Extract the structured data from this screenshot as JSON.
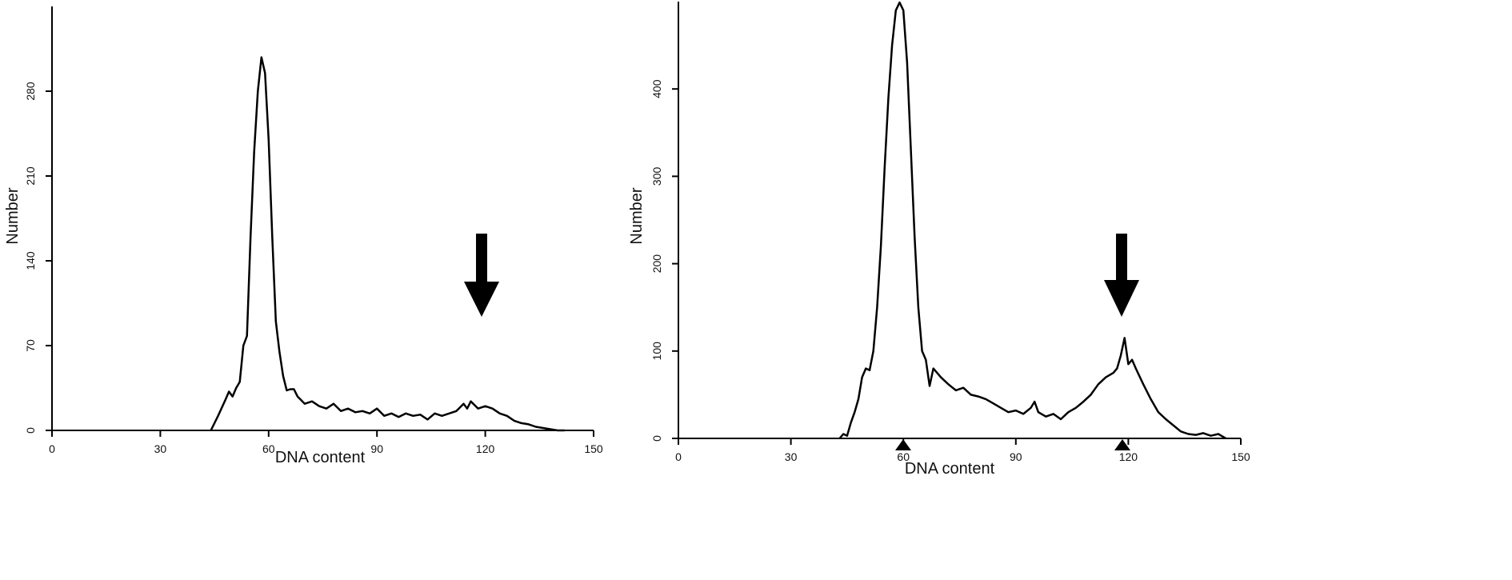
{
  "chart_data": [
    {
      "type": "line",
      "xlabel": "DNA  content",
      "ylabel": "Number",
      "color": "#000000",
      "x": [
        44,
        46,
        48,
        49,
        50,
        51,
        52,
        53,
        54,
        55,
        56,
        57,
        58,
        59,
        60,
        61,
        62,
        63,
        64,
        65,
        66,
        67,
        68,
        69,
        70,
        72,
        74,
        76,
        78,
        80,
        82,
        84,
        86,
        88,
        90,
        92,
        94,
        96,
        98,
        100,
        102,
        104,
        106,
        108,
        110,
        112,
        114,
        115,
        116,
        118,
        120,
        122,
        124,
        126,
        128,
        130,
        132,
        134,
        136,
        138,
        140,
        142
      ],
      "values": [
        0,
        12,
        25,
        32,
        28,
        35,
        40,
        70,
        78,
        160,
        230,
        280,
        308,
        295,
        240,
        160,
        90,
        65,
        45,
        33,
        34,
        34,
        28,
        25,
        22,
        24,
        20,
        18,
        22,
        16,
        18,
        15,
        16,
        14,
        18,
        12,
        14,
        11,
        14,
        12,
        13,
        9,
        14,
        12,
        14,
        16,
        22,
        18,
        24,
        18,
        20,
        18,
        14,
        12,
        8,
        6,
        5,
        3,
        2,
        1,
        0,
        0
      ],
      "xlim": [
        0,
        150
      ],
      "ylim": [
        0,
        350
      ],
      "xticks": [
        0,
        30,
        60,
        90,
        120,
        150
      ],
      "yticks": [
        0,
        70,
        140,
        210,
        280
      ]
    },
    {
      "type": "line",
      "xlabel": "DNA  content",
      "ylabel": "Number",
      "color": "#000000",
      "x": [
        43,
        44,
        45,
        46,
        47,
        48,
        49,
        50,
        51,
        52,
        53,
        54,
        55,
        56,
        57,
        58,
        59,
        60,
        61,
        62,
        63,
        64,
        65,
        66,
        67,
        68,
        69,
        70,
        72,
        74,
        76,
        78,
        80,
        82,
        84,
        86,
        88,
        90,
        92,
        94,
        95,
        96,
        98,
        100,
        102,
        104,
        106,
        108,
        110,
        112,
        114,
        116,
        117,
        118,
        119,
        120,
        121,
        122,
        124,
        126,
        128,
        130,
        132,
        134,
        136,
        138,
        140,
        142,
        144,
        146
      ],
      "values": [
        0,
        5,
        3,
        18,
        30,
        45,
        70,
        80,
        78,
        100,
        150,
        220,
        310,
        390,
        450,
        490,
        499,
        490,
        430,
        330,
        230,
        150,
        100,
        90,
        60,
        80,
        75,
        70,
        62,
        55,
        58,
        50,
        48,
        45,
        40,
        35,
        30,
        32,
        28,
        35,
        42,
        30,
        25,
        28,
        22,
        30,
        35,
        42,
        50,
        62,
        70,
        75,
        80,
        95,
        115,
        85,
        90,
        80,
        62,
        45,
        30,
        22,
        15,
        8,
        5,
        4,
        6,
        3,
        5,
        0
      ],
      "xlim": [
        0,
        150
      ],
      "ylim": [
        0,
        500
      ],
      "xticks": [
        0,
        30,
        60,
        90,
        120,
        150
      ],
      "yticks": [
        0,
        100,
        200,
        300,
        400
      ]
    }
  ]
}
